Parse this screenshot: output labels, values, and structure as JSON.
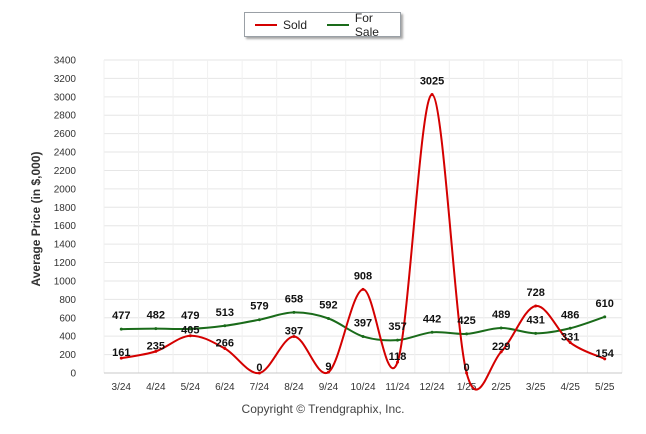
{
  "chart_data": {
    "type": "line",
    "categories": [
      "3/24",
      "4/24",
      "5/24",
      "6/24",
      "7/24",
      "8/24",
      "9/24",
      "10/24",
      "11/24",
      "12/24",
      "1/25",
      "2/25",
      "3/25",
      "4/25",
      "5/25"
    ],
    "series": [
      {
        "name": "Sold",
        "color": "#d40000",
        "values": [
          161,
          235,
          405,
          266,
          0,
          397,
          9,
          908,
          118,
          3025,
          0,
          229,
          728,
          331,
          154
        ]
      },
      {
        "name": "For Sale",
        "color": "#1a6b1a",
        "values": [
          477,
          482,
          479,
          513,
          579,
          658,
          592,
          397,
          357,
          442,
          425,
          489,
          431,
          486,
          610
        ]
      }
    ],
    "ylabel": "Average Price (in $,000)",
    "xlabel": "",
    "ylim": [
      0,
      3400
    ],
    "yticks": [
      0,
      200,
      400,
      600,
      800,
      1000,
      1200,
      1400,
      1600,
      1800,
      2000,
      2200,
      2400,
      2600,
      2800,
      3000,
      3200,
      3400
    ],
    "grid": true,
    "legend_position": "top-center",
    "footer": "Copyright © Trendgraphix, Inc."
  }
}
